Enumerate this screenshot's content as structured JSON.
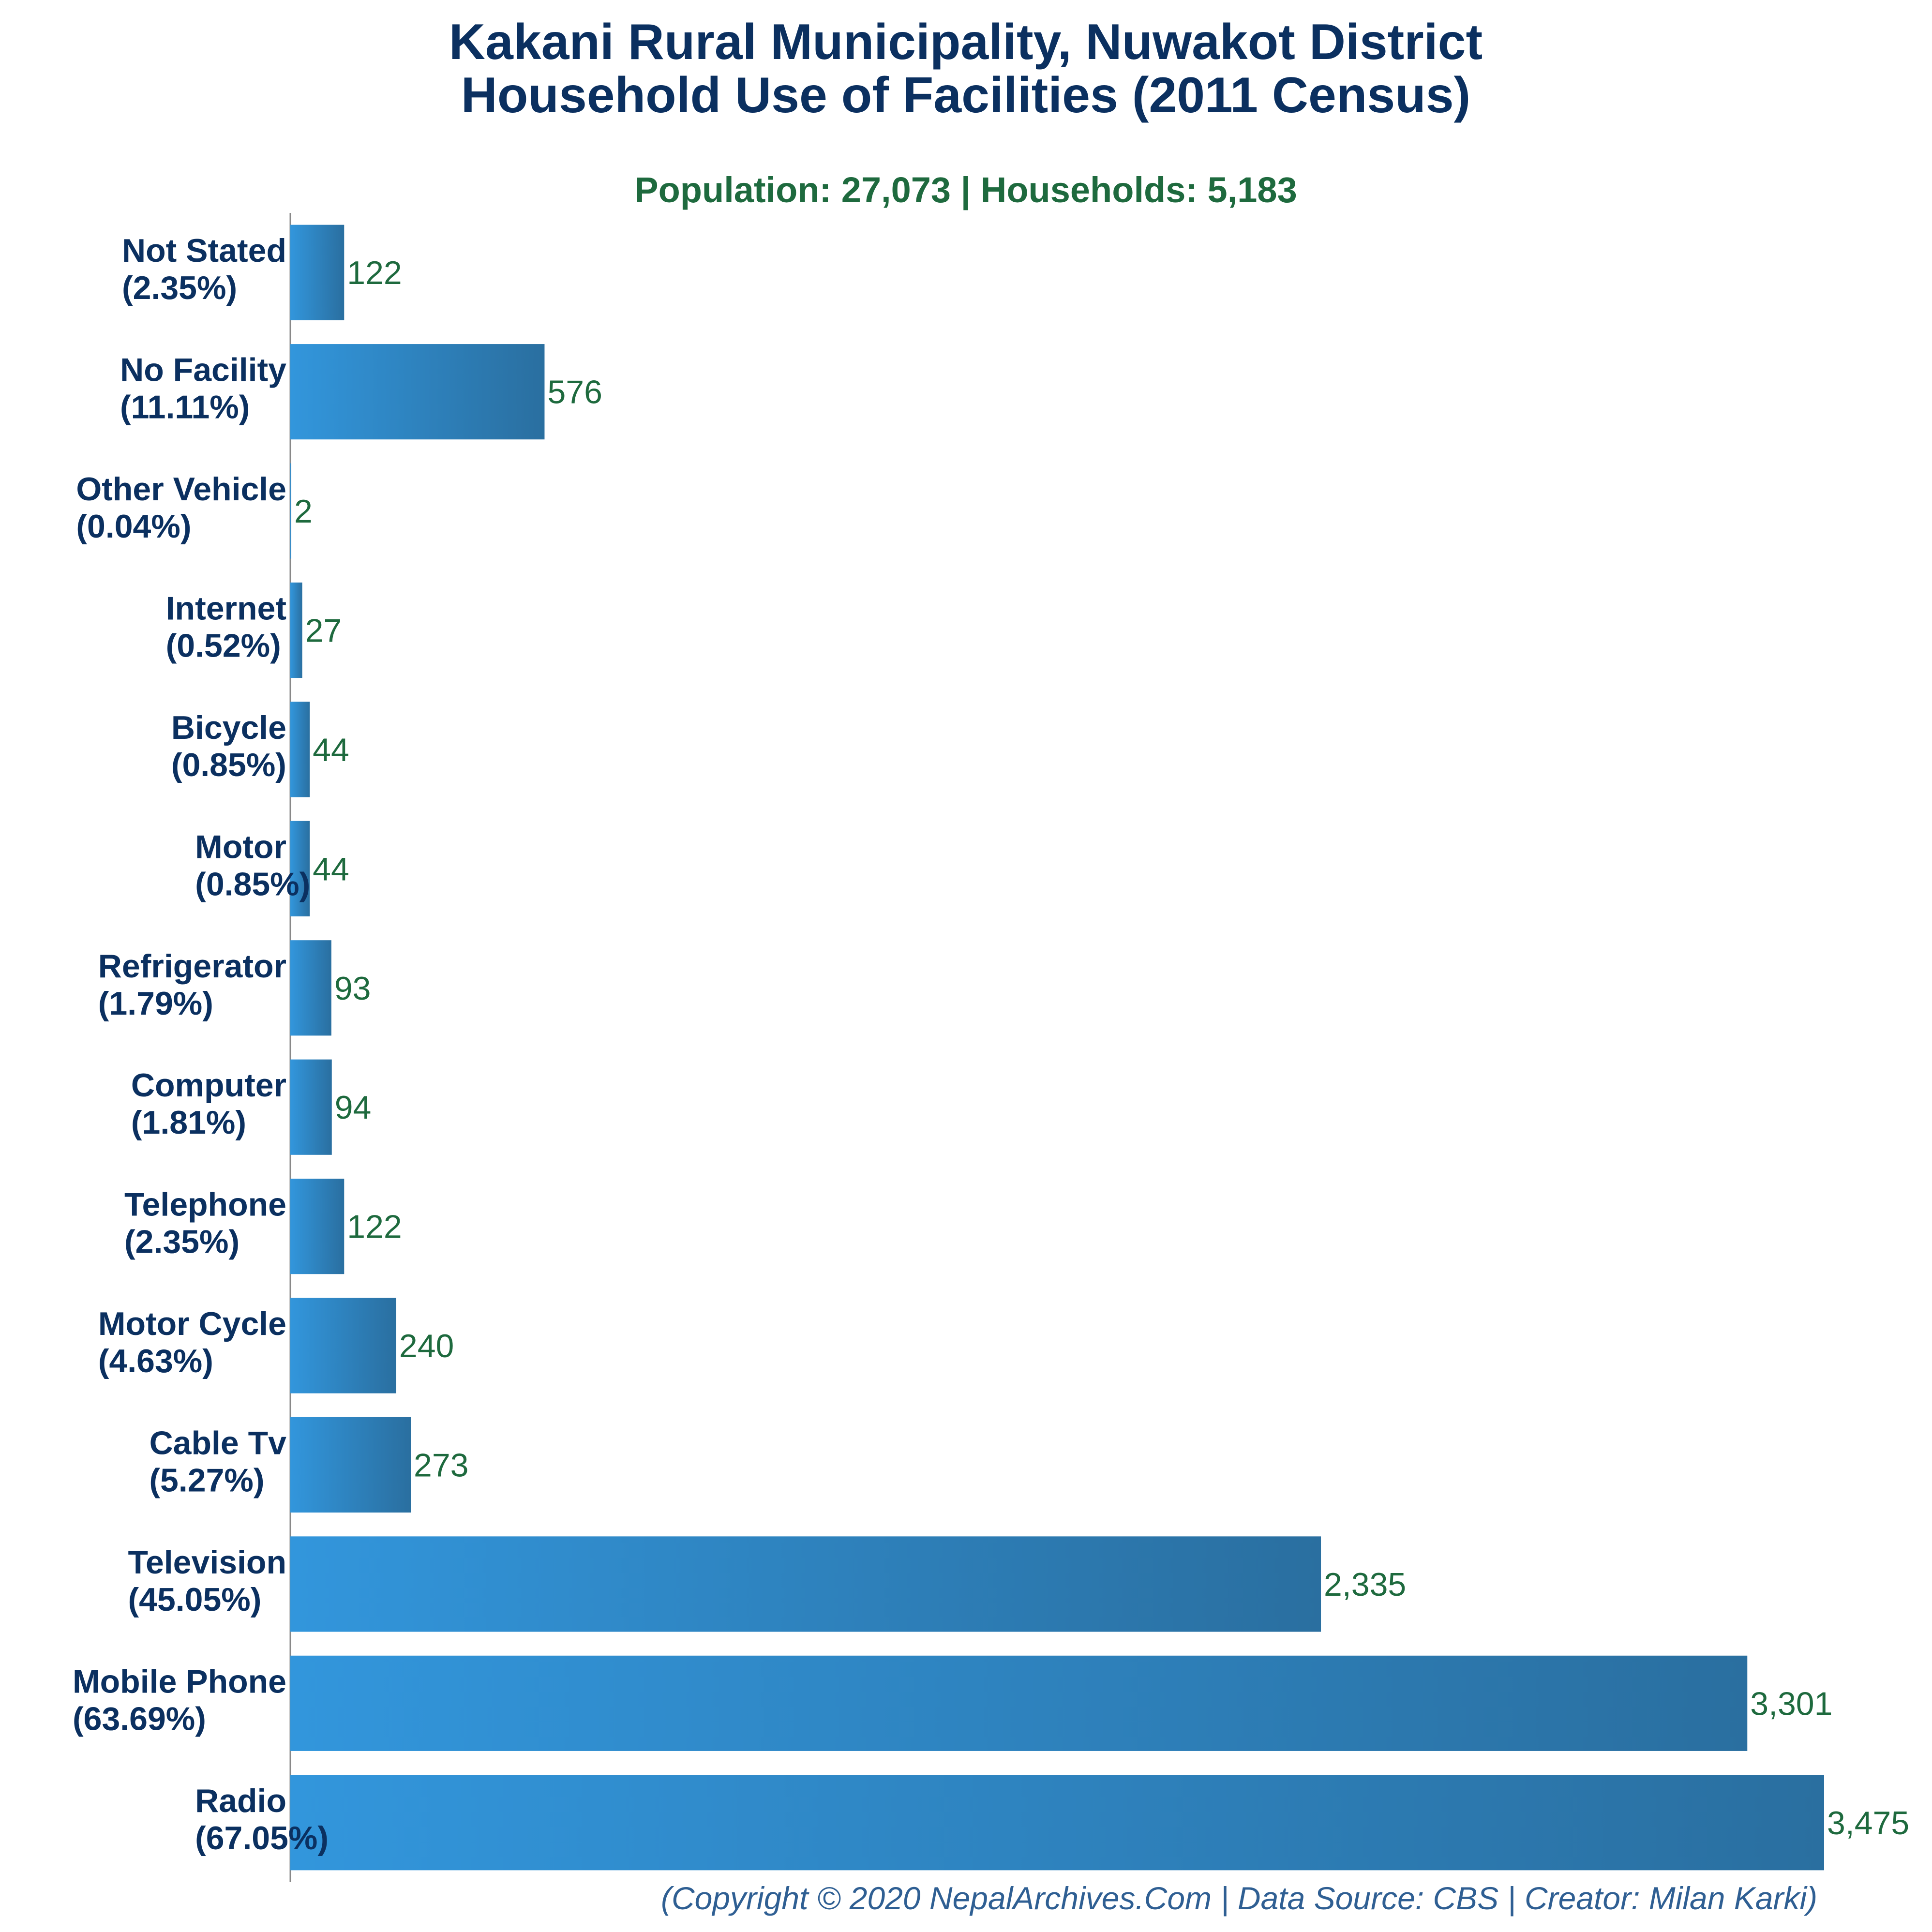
{
  "chart_data": {
    "type": "bar",
    "orientation": "horizontal",
    "title": [
      "Kakani Rural Municipality, Nuwakot District",
      "Household Use of Facilities (2011 Census)"
    ],
    "subtitle": "Population: 27,073 | Households: 5,183",
    "categories": [
      "Not Stated",
      "No Facility",
      "Other Vehicle",
      "Internet",
      "Bicycle",
      "Motor",
      "Refrigerator",
      "Computer",
      "Telephone",
      "Motor Cycle",
      "Cable Tv",
      "Television",
      "Mobile Phone",
      "Radio"
    ],
    "percent_labels": [
      "(2.35%)",
      "(11.11%)",
      "(0.04%)",
      "(0.52%)",
      "(0.85%)",
      "(0.85%)",
      "(1.79%)",
      "(1.81%)",
      "(2.35%)",
      "(4.63%)",
      "(5.27%)",
      "(45.05%)",
      "(63.69%)",
      "(67.05%)"
    ],
    "values": [
      122,
      576,
      2,
      27,
      44,
      44,
      93,
      94,
      122,
      240,
      273,
      2335,
      3301,
      3475
    ],
    "value_labels": [
      "122",
      "576",
      "2",
      "27",
      "44",
      "44",
      "93",
      "94",
      "122",
      "240",
      "273",
      "2,335",
      "3,301",
      "3,475"
    ],
    "xlim": [
      0,
      3475
    ],
    "xlabel": "",
    "ylabel": "",
    "grid": false,
    "legend": "none",
    "colors": {
      "bar_light": "#3296dc",
      "bar_dark": "#2a6fa0",
      "title": "#0b3060",
      "subtitle": "#1e6a3e",
      "value_label": "#1e6a3e",
      "footer": "#2f5f93",
      "axis": "#888888"
    },
    "footer": "(Copyright © 2020 NepalArchives.Com | Data Source: CBS | Creator: Milan Karki)"
  }
}
